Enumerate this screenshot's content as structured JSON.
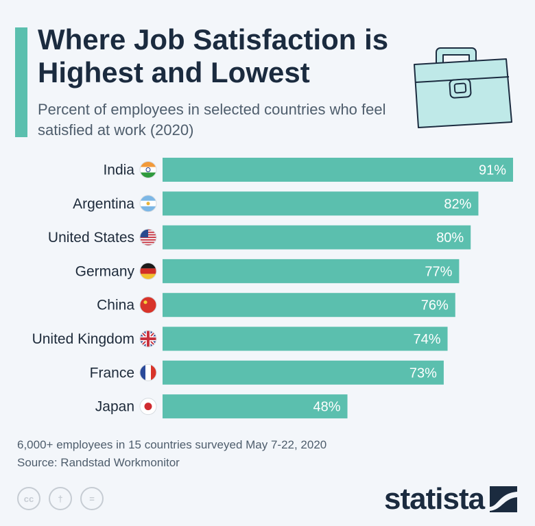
{
  "header": {
    "title": "Where Job Satisfaction is Highest and Lowest",
    "subtitle": "Percent of employees in selected countries who feel satisfied at work (2020)"
  },
  "chart_data": {
    "type": "bar",
    "orientation": "horizontal",
    "categories": [
      "India",
      "Argentina",
      "United States",
      "Germany",
      "China",
      "United Kingdom",
      "France",
      "Japan"
    ],
    "values": [
      91,
      82,
      80,
      77,
      76,
      74,
      73,
      48
    ],
    "value_labels": [
      "91%",
      "82%",
      "80%",
      "77%",
      "76%",
      "74%",
      "73%",
      "48%"
    ],
    "flag_icons": [
      "india-flag-icon",
      "argentina-flag-icon",
      "united-states-flag-icon",
      "germany-flag-icon",
      "china-flag-icon",
      "united-kingdom-flag-icon",
      "france-flag-icon",
      "japan-flag-icon"
    ],
    "xlim": [
      0,
      91
    ],
    "grid": false,
    "bar_color": "#5bbfae",
    "label_color": "#ffffff"
  },
  "footer": {
    "note": "6,000+ employees in 15 countries surveyed May 7-22, 2020",
    "source": "Source: Randstad Workmonitor",
    "license_icons": [
      "cc-icon",
      "by-icon",
      "nd-icon"
    ],
    "license_glyphs": [
      "cc",
      "†",
      "="
    ],
    "brand": "statista"
  },
  "colors": {
    "accent": "#5bbfae",
    "title": "#1b2b3f",
    "text": "#4e5d6c",
    "background": "#f3f6fa"
  }
}
